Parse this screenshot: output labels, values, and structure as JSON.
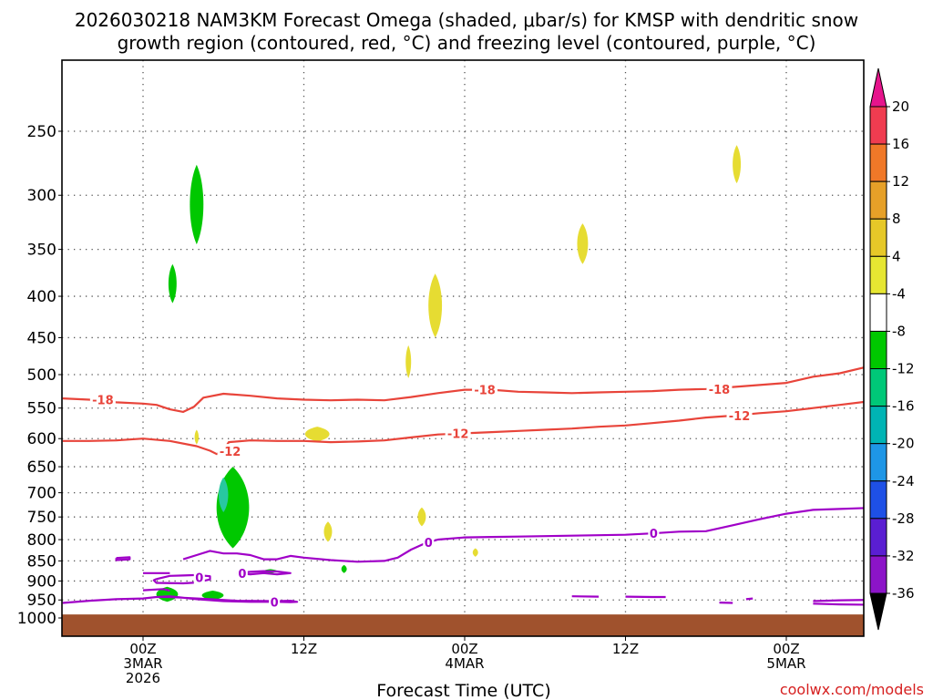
{
  "title": {
    "line1": "2026030218 NAM3KM Forecast Omega (shaded, μbar/s) for KMSP with dendritic snow",
    "line2": "growth region (contoured, red, °C) and freezing level (contoured, purple, °C)"
  },
  "credit": "coolwx.com/models",
  "colors": {
    "dgz": "#e8443a",
    "freezing": "#a000c8",
    "ground": "#a0522d",
    "rising_strong": "#00c800",
    "rising": "#00b400",
    "rising_cyan": "#28c8a0",
    "sinking": "#e6dc32",
    "sinking_orange": "#e6a028"
  },
  "chart_data": {
    "type": "heatmap",
    "title": "2026030218 NAM3KM Forecast Omega (shaded, μbar/s) for KMSP with dendritic snow growth region (contoured, red, °C) and freezing level (contoured, purple, °C)",
    "xlabel": "Forecast Time (UTC)",
    "ylabel": "",
    "x_ticks": [
      {
        "hour": 6,
        "lines": [
          "00Z",
          "3MAR",
          "2026"
        ]
      },
      {
        "hour": 18,
        "lines": [
          "12Z"
        ]
      },
      {
        "hour": 30,
        "lines": [
          "00Z",
          "4MAR"
        ]
      },
      {
        "hour": 42,
        "lines": [
          "12Z"
        ]
      },
      {
        "hour": 54,
        "lines": [
          "00Z",
          "5MAR"
        ]
      }
    ],
    "xlim": [
      0,
      60
    ],
    "y_ticks": [
      250,
      300,
      350,
      400,
      450,
      500,
      550,
      600,
      650,
      700,
      750,
      800,
      850,
      900,
      950,
      1000
    ],
    "ylim": [
      1000,
      200
    ],
    "y_scale": "log-pressure",
    "grid": true,
    "colorbar": {
      "label_unit": "μbar/s",
      "labels": [
        20,
        16,
        12,
        8,
        4,
        -4,
        -8,
        -12,
        -16,
        -20,
        -24,
        -28,
        -32,
        -36
      ],
      "colors": [
        "#f03c50",
        "#f07828",
        "#e6a028",
        "#e6c828",
        "#e6e632",
        "#ffffff",
        "#00c800",
        "#00c878",
        "#00b4b4",
        "#1e96e6",
        "#1e50e6",
        "#5a1ed2",
        "#8c14c8",
        "#a000c8",
        "#a0a0a0"
      ],
      "top_arrow": "#e6148c",
      "bottom_arrow": "#000000"
    },
    "contours": [
      {
        "level": -18,
        "label": "-18",
        "color": "dgz",
        "points": [
          [
            0,
            535
          ],
          [
            2,
            537
          ],
          [
            4,
            541
          ],
          [
            6,
            543
          ],
          [
            7,
            545
          ],
          [
            8,
            552
          ],
          [
            9,
            556
          ],
          [
            9.8,
            548
          ],
          [
            10.5,
            534
          ],
          [
            12,
            528
          ],
          [
            14,
            531
          ],
          [
            16,
            535
          ],
          [
            18,
            537
          ],
          [
            20,
            538
          ],
          [
            22,
            537
          ],
          [
            24,
            538
          ],
          [
            26,
            533
          ],
          [
            28,
            527
          ],
          [
            30,
            522
          ],
          [
            32,
            522
          ],
          [
            34,
            525
          ],
          [
            36,
            526
          ],
          [
            38,
            527
          ],
          [
            40,
            526
          ],
          [
            42,
            525
          ],
          [
            44,
            524
          ],
          [
            46,
            522
          ],
          [
            48,
            521
          ],
          [
            50,
            518
          ],
          [
            52,
            515
          ],
          [
            54,
            512
          ],
          [
            56,
            503
          ],
          [
            58,
            498
          ],
          [
            60,
            489
          ]
        ],
        "label_positions": [
          [
            3,
            537
          ],
          [
            31.5,
            522
          ],
          [
            49,
            521
          ]
        ]
      },
      {
        "level": -12,
        "label": "-12",
        "color": "dgz",
        "points": [
          [
            0,
            604
          ],
          [
            2,
            604
          ],
          [
            4,
            603
          ],
          [
            6,
            600
          ],
          [
            8,
            604
          ],
          [
            10,
            613
          ],
          [
            11,
            621
          ],
          [
            11.5,
            627
          ],
          [
            12,
            620
          ],
          [
            12.4,
            606
          ],
          [
            14,
            603
          ],
          [
            16,
            604
          ],
          [
            18,
            604
          ],
          [
            20,
            606
          ],
          [
            22,
            605
          ],
          [
            24,
            603
          ],
          [
            26,
            598
          ],
          [
            28,
            593
          ],
          [
            30,
            591
          ],
          [
            32,
            589
          ],
          [
            34,
            587
          ],
          [
            36,
            585
          ],
          [
            38,
            583
          ],
          [
            40,
            580
          ],
          [
            42,
            578
          ],
          [
            44,
            574
          ],
          [
            46,
            570
          ],
          [
            48,
            565
          ],
          [
            50,
            562
          ],
          [
            52,
            558
          ],
          [
            54,
            555
          ],
          [
            56,
            550
          ],
          [
            58,
            545
          ],
          [
            60,
            540
          ]
        ],
        "label_positions": [
          [
            29.5,
            591
          ],
          [
            12.5,
            622
          ],
          [
            50.5,
            562
          ]
        ]
      },
      {
        "level": 0,
        "label": "0",
        "color": "freezing",
        "points": [
          [
            0,
            958
          ],
          [
            2,
            952
          ],
          [
            4,
            948
          ],
          [
            6,
            946
          ],
          [
            7,
            942
          ],
          [
            8,
            940
          ],
          [
            10,
            948
          ],
          [
            12,
            953
          ],
          [
            14,
            955
          ],
          [
            16,
            955
          ],
          [
            17,
            956
          ],
          [
            17.5,
            955
          ],
          [
            17,
            952
          ],
          [
            16,
            953
          ],
          [
            13,
            952
          ],
          [
            11,
            948
          ],
          [
            9,
            944
          ],
          [
            8,
            942
          ],
          [
            7,
            942
          ]
        ],
        "label_positions": [
          [
            15.8,
            955
          ]
        ]
      },
      {
        "level": 0,
        "label": "0",
        "color": "freezing",
        "points": [
          [
            9,
            846
          ],
          [
            10,
            836
          ],
          [
            11,
            826
          ],
          [
            12,
            832
          ],
          [
            13,
            832
          ],
          [
            14,
            836
          ],
          [
            15,
            846
          ],
          [
            16,
            846
          ],
          [
            17,
            838
          ],
          [
            18,
            842
          ],
          [
            20,
            848
          ],
          [
            22,
            852
          ],
          [
            24,
            850
          ],
          [
            25,
            842
          ],
          [
            26,
            823
          ],
          [
            27,
            809
          ],
          [
            28,
            800
          ],
          [
            30,
            795
          ],
          [
            32,
            794
          ],
          [
            34,
            793
          ],
          [
            36,
            792
          ],
          [
            38,
            791
          ],
          [
            40,
            790
          ],
          [
            42,
            789
          ],
          [
            44,
            786
          ],
          [
            46,
            782
          ],
          [
            48,
            781
          ],
          [
            50,
            768
          ],
          [
            52,
            755
          ],
          [
            54,
            743
          ],
          [
            56,
            735
          ],
          [
            58,
            733
          ],
          [
            60,
            731
          ]
        ],
        "label_positions": [
          [
            27.3,
            806
          ],
          [
            44.1,
            785
          ]
        ]
      },
      {
        "level": 0,
        "label": "0",
        "color": "freezing",
        "points": [
          [
            7,
            895
          ],
          [
            8,
            887
          ],
          [
            9,
            886
          ],
          [
            10,
            885
          ],
          [
            11,
            888
          ],
          [
            11,
            896
          ],
          [
            10,
            904
          ],
          [
            9,
            906
          ],
          [
            7,
            905
          ],
          [
            6.8,
            898
          ],
          [
            7,
            895
          ]
        ],
        "label_positions": [
          [
            10.2,
            891
          ]
        ]
      },
      {
        "level": 0,
        "label": "0",
        "color": "freezing",
        "points": [
          [
            13,
            880
          ],
          [
            14,
            877
          ],
          [
            15,
            875
          ],
          [
            16,
            876
          ],
          [
            17,
            880
          ],
          [
            16,
            883
          ],
          [
            15,
            880
          ],
          [
            14,
            883
          ],
          [
            13,
            880
          ]
        ],
        "label_positions": [
          [
            13.4,
            880
          ]
        ]
      },
      {
        "level": 0,
        "label": "0",
        "color": "freezing",
        "points": [
          [
            4,
            843
          ],
          [
            5,
            841
          ],
          [
            5,
            846
          ],
          [
            4,
            848
          ],
          [
            4,
            843
          ]
        ],
        "label_positions": []
      },
      {
        "level": 0,
        "label": "0",
        "color": "freezing",
        "points": [
          [
            6,
            880
          ],
          [
            8,
            880
          ]
        ],
        "label_positions": []
      },
      {
        "level": 0,
        "label": "0",
        "color": "freezing",
        "points": [
          [
            6,
            924
          ],
          [
            7.5,
            921
          ],
          [
            8,
            925
          ]
        ],
        "label_positions": []
      },
      {
        "level": 0,
        "label": "0",
        "color": "freezing",
        "points": [
          [
            38,
            940
          ],
          [
            40,
            941
          ]
        ],
        "label_positions": []
      },
      {
        "level": 0,
        "label": "0",
        "color": "freezing",
        "points": [
          [
            42,
            941
          ],
          [
            44,
            942
          ],
          [
            45,
            942
          ]
        ],
        "label_positions": []
      },
      {
        "level": 0,
        "label": "0",
        "color": "freezing",
        "points": [
          [
            49,
            957
          ],
          [
            50,
            958
          ]
        ],
        "label_positions": []
      },
      {
        "level": 0,
        "label": "0",
        "color": "freezing",
        "points": [
          [
            51,
            948
          ],
          [
            51.5,
            946
          ]
        ],
        "label_positions": []
      },
      {
        "level": 0,
        "label": "0",
        "color": "freezing",
        "points": [
          [
            56,
            960
          ],
          [
            58,
            962
          ],
          [
            60,
            963
          ]
        ],
        "label_positions": []
      },
      {
        "level": 0,
        "label": "0",
        "color": "freezing",
        "points": [
          [
            56,
            953
          ],
          [
            58,
            951
          ],
          [
            60,
            950
          ]
        ],
        "label_positions": []
      }
    ],
    "shaded_regions": [
      {
        "range": "-8 to -4",
        "color": "rising_strong",
        "center": [
          10.0,
          300
        ],
        "half_width_h": 0.5,
        "top": 275,
        "bottom": 345
      },
      {
        "range": "-8 to -4",
        "color": "rising_strong",
        "center": [
          8.2,
          385
        ],
        "half_width_h": 0.3,
        "top": 365,
        "bottom": 408
      },
      {
        "range": "-8 to -4",
        "color": "rising_strong",
        "center": [
          12.7,
          740
        ],
        "half_width_h": 1.2,
        "top": 650,
        "bottom": 820
      },
      {
        "range": "-12 to -8",
        "color": "rising_cyan",
        "center": [
          12.0,
          705
        ],
        "half_width_h": 0.35,
        "top": 670,
        "bottom": 740
      },
      {
        "range": "-8 to -4",
        "color": "rising_strong",
        "center": [
          7.8,
          935
        ],
        "half_width_h": 0.8,
        "top": 915,
        "bottom": 955
      },
      {
        "range": "-8 to -4",
        "color": "rising_strong",
        "center": [
          11.2,
          940
        ],
        "half_width_h": 0.8,
        "top": 925,
        "bottom": 950
      },
      {
        "range": "-8 to -4",
        "color": "rising_strong",
        "center": [
          15.5,
          875
        ],
        "half_width_h": 0.5,
        "top": 870,
        "bottom": 880
      },
      {
        "range": "-8 to -4",
        "color": "rising_strong",
        "center": [
          21.0,
          870
        ],
        "half_width_h": 0.2,
        "top": 860,
        "bottom": 880
      },
      {
        "range": "4 to 8",
        "color": "sinking",
        "center": [
          27.8,
          420
        ],
        "half_width_h": 0.5,
        "top": 375,
        "bottom": 450
      },
      {
        "range": "4 to 8",
        "color": "sinking",
        "center": [
          25.8,
          480
        ],
        "half_width_h": 0.2,
        "top": 460,
        "bottom": 505
      },
      {
        "range": "4 to 8",
        "color": "sinking",
        "center": [
          38.8,
          345
        ],
        "half_width_h": 0.4,
        "top": 325,
        "bottom": 365
      },
      {
        "range": "4 to 8",
        "color": "sinking",
        "center": [
          50.3,
          275
        ],
        "half_width_h": 0.3,
        "top": 260,
        "bottom": 290
      },
      {
        "range": "4 to 8",
        "color": "sinking",
        "center": [
          19.0,
          590
        ],
        "half_width_h": 0.9,
        "top": 580,
        "bottom": 605
      },
      {
        "range": "4 to 8",
        "color": "sinking",
        "center": [
          10.0,
          595
        ],
        "half_width_h": 0.15,
        "top": 585,
        "bottom": 610
      },
      {
        "range": "4 to 8",
        "color": "sinking",
        "center": [
          19.8,
          780
        ],
        "half_width_h": 0.3,
        "top": 760,
        "bottom": 805
      },
      {
        "range": "4 to 8",
        "color": "sinking",
        "center": [
          26.8,
          745
        ],
        "half_width_h": 0.3,
        "top": 730,
        "bottom": 770
      },
      {
        "range": "4 to 8",
        "color": "sinking",
        "center": [
          30.8,
          830
        ],
        "half_width_h": 0.2,
        "top": 820,
        "bottom": 840
      }
    ],
    "ground": {
      "top_hpa": 990,
      "bottom_hpa": 1060
    }
  }
}
